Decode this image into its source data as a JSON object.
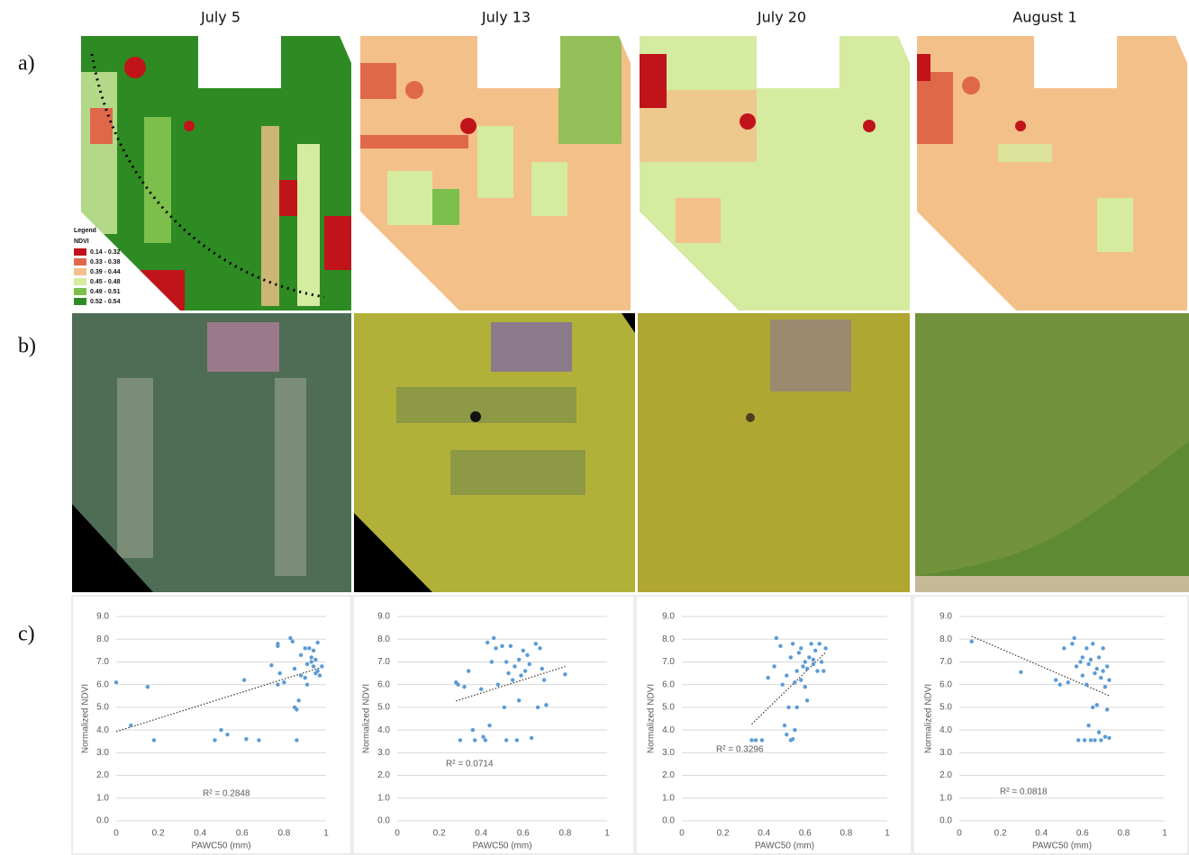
{
  "columns": [
    "July 5",
    "July 13",
    "July 20",
    "August 1"
  ],
  "rows": [
    "a)",
    "b)",
    "c)"
  ],
  "map_legend": {
    "title": "Legend",
    "field": "NDVI",
    "classes": [
      {
        "label": "0.14 - 0.32",
        "color": "#c0141a"
      },
      {
        "label": "0.33 - 0.38",
        "color": "#e0684a"
      },
      {
        "label": "0.39 - 0.44",
        "color": "#f4c08a"
      },
      {
        "label": "0.45 - 0.48",
        "color": "#d4eba0"
      },
      {
        "label": "0.49 - 0.51",
        "color": "#7cbf4c"
      },
      {
        "label": "0.52 - 0.54",
        "color": "#2e8b23"
      }
    ]
  },
  "chart_data": [
    {
      "type": "scatter",
      "xlabel": "PAWC50 (mm)",
      "ylabel": "Normalized NDVI",
      "annotation": "R² = 0.2848",
      "color": "#5b9bd5",
      "trendline": true,
      "grid": true,
      "xlim": [
        0,
        1
      ],
      "ylim": [
        0,
        9
      ],
      "xticks": [
        0,
        0.2,
        0.4,
        0.6,
        0.8,
        1
      ],
      "yticks": [
        {
          "value": 0,
          "label": "0.0"
        },
        {
          "value": 1,
          "label": "1.0"
        },
        {
          "value": 2,
          "label": "2.0"
        },
        {
          "value": 3,
          "label": "3.0"
        },
        {
          "value": 4,
          "label": "4.0"
        },
        {
          "value": 5,
          "label": "5.0"
        },
        {
          "value": 6,
          "label": "6.0"
        },
        {
          "value": 7,
          "label": "7.0"
        },
        {
          "value": 8,
          "label": "8.0"
        },
        {
          "value": 9,
          "label": "9.0"
        }
      ],
      "x": [
        0,
        0.07,
        0.15,
        0.18,
        0.47,
        0.5,
        0.53,
        0.62,
        0.61,
        0.68,
        0.74,
        0.77,
        0.77,
        0.78,
        0.77,
        0.8,
        0.83,
        0.84,
        0.85,
        0.85,
        0.86,
        0.86,
        0.87,
        0.88,
        0.88,
        0.9,
        0.91,
        0.92,
        0.93,
        0.93,
        0.94,
        0.94,
        0.95,
        0.95,
        0.96,
        0.96,
        0.97,
        0.98,
        0.9,
        0.91
      ],
      "y": [
        6.1,
        4.2,
        5.9,
        3.55,
        3.55,
        4.0,
        3.8,
        3.6,
        6.2,
        3.55,
        6.85,
        7.8,
        7.7,
        6.5,
        6.0,
        6.1,
        8.05,
        7.9,
        6.7,
        5.0,
        4.9,
        3.55,
        5.3,
        7.3,
        6.4,
        7.6,
        6.9,
        7.6,
        7.2,
        7.0,
        7.5,
        6.8,
        6.5,
        7.1,
        7.85,
        6.6,
        6.4,
        6.8,
        6.3,
        6.0
      ]
    },
    {
      "type": "scatter",
      "xlabel": "PAWC50 (mm)",
      "ylabel": "Normalized NDVI",
      "annotation": "R² = 0.0714",
      "color": "#5b9bd5",
      "trendline": true,
      "grid": true,
      "xlim": [
        0,
        1
      ],
      "ylim": [
        0,
        9
      ],
      "xticks": [
        0,
        0.2,
        0.4,
        0.6,
        0.8,
        1
      ],
      "yticks": [
        {
          "value": 0,
          "label": "0.0"
        },
        {
          "value": 1,
          "label": "1.0"
        },
        {
          "value": 2,
          "label": "2.0"
        },
        {
          "value": 3,
          "label": "3.0"
        },
        {
          "value": 4,
          "label": "4.0"
        },
        {
          "value": 5,
          "label": "5.0"
        },
        {
          "value": 6,
          "label": "6.0"
        },
        {
          "value": 7,
          "label": "7.0"
        },
        {
          "value": 8,
          "label": "8.0"
        },
        {
          "value": 9,
          "label": "9.0"
        }
      ],
      "x": [
        0.28,
        0.29,
        0.3,
        0.32,
        0.34,
        0.36,
        0.37,
        0.4,
        0.41,
        0.42,
        0.43,
        0.44,
        0.45,
        0.46,
        0.47,
        0.48,
        0.5,
        0.51,
        0.52,
        0.52,
        0.53,
        0.54,
        0.55,
        0.56,
        0.57,
        0.58,
        0.58,
        0.59,
        0.6,
        0.61,
        0.62,
        0.63,
        0.64,
        0.66,
        0.67,
        0.68,
        0.69,
        0.7,
        0.71,
        0.8
      ],
      "y": [
        6.1,
        6.0,
        3.55,
        5.9,
        6.6,
        4.0,
        3.55,
        5.8,
        3.7,
        3.55,
        7.85,
        4.2,
        7.0,
        8.05,
        7.6,
        6.0,
        7.7,
        5.0,
        7.0,
        3.55,
        6.5,
        7.7,
        6.2,
        6.8,
        3.55,
        5.3,
        7.1,
        6.4,
        7.5,
        6.6,
        7.3,
        6.9,
        3.65,
        7.8,
        5.0,
        7.6,
        6.7,
        6.2,
        5.1,
        6.45
      ]
    },
    {
      "type": "scatter",
      "xlabel": "PAWC50 (mm)",
      "ylabel": "Normalized NDVI",
      "annotation": "R² = 0.3296",
      "color": "#5b9bd5",
      "trendline": true,
      "grid": true,
      "xlim": [
        0,
        1
      ],
      "ylim": [
        0,
        9
      ],
      "xticks": [
        0,
        0.2,
        0.4,
        0.6,
        0.8,
        1
      ],
      "yticks": [
        {
          "value": 0,
          "label": "0.0"
        },
        {
          "value": 1,
          "label": "1.0"
        },
        {
          "value": 2,
          "label": "2.0"
        },
        {
          "value": 3,
          "label": "3.0"
        },
        {
          "value": 4,
          "label": "4.0"
        },
        {
          "value": 5,
          "label": "5.0"
        },
        {
          "value": 6,
          "label": "6.0"
        },
        {
          "value": 7,
          "label": "7.0"
        },
        {
          "value": 8,
          "label": "8.0"
        },
        {
          "value": 9,
          "label": "9.0"
        }
      ],
      "x": [
        0.34,
        0.36,
        0.39,
        0.42,
        0.45,
        0.46,
        0.48,
        0.49,
        0.5,
        0.51,
        0.51,
        0.52,
        0.53,
        0.53,
        0.54,
        0.54,
        0.55,
        0.55,
        0.56,
        0.56,
        0.57,
        0.58,
        0.58,
        0.59,
        0.6,
        0.6,
        0.61,
        0.61,
        0.62,
        0.63,
        0.64,
        0.64,
        0.65,
        0.66,
        0.67,
        0.68,
        0.69,
        0.7
      ],
      "y": [
        3.55,
        3.55,
        3.55,
        6.3,
        6.8,
        8.05,
        7.7,
        6.0,
        4.2,
        6.4,
        3.8,
        5.0,
        7.2,
        3.55,
        3.6,
        7.8,
        6.1,
        4.0,
        5.0,
        6.6,
        7.4,
        6.2,
        7.6,
        6.8,
        5.9,
        7.0,
        5.3,
        6.7,
        7.2,
        7.8,
        6.9,
        7.1,
        7.5,
        6.6,
        7.8,
        7.0,
        6.6,
        7.6
      ]
    },
    {
      "type": "scatter",
      "xlabel": "PAWC50 (mm)",
      "ylabel": "Normalized NDVI",
      "annotation": "R² = 0.0818",
      "color": "#5b9bd5",
      "trendline": true,
      "grid": true,
      "xlim": [
        0,
        1
      ],
      "ylim": [
        0,
        9
      ],
      "xticks": [
        0,
        0.2,
        0.4,
        0.6,
        0.8,
        1
      ],
      "yticks": [
        {
          "value": 0,
          "label": "0.0"
        },
        {
          "value": 1,
          "label": "1.0"
        },
        {
          "value": 2,
          "label": "2.0"
        },
        {
          "value": 3,
          "label": "3.0"
        },
        {
          "value": 4,
          "label": "4.0"
        },
        {
          "value": 5,
          "label": "5.0"
        },
        {
          "value": 6,
          "label": "6.0"
        },
        {
          "value": 7,
          "label": "7.0"
        },
        {
          "value": 8,
          "label": "8.0"
        },
        {
          "value": 9,
          "label": "9.0"
        }
      ],
      "x": [
        0.06,
        0.3,
        0.47,
        0.49,
        0.51,
        0.53,
        0.55,
        0.56,
        0.57,
        0.58,
        0.59,
        0.6,
        0.6,
        0.61,
        0.62,
        0.62,
        0.63,
        0.63,
        0.64,
        0.64,
        0.65,
        0.65,
        0.66,
        0.66,
        0.67,
        0.67,
        0.68,
        0.68,
        0.69,
        0.69,
        0.7,
        0.7,
        0.71,
        0.71,
        0.72,
        0.72,
        0.73,
        0.73
      ],
      "y": [
        7.9,
        6.55,
        6.2,
        6.0,
        7.6,
        6.1,
        7.8,
        8.05,
        6.8,
        3.55,
        7.0,
        6.4,
        7.2,
        3.55,
        6.0,
        7.6,
        4.2,
        6.9,
        3.55,
        7.1,
        5.0,
        7.8,
        3.55,
        6.5,
        5.1,
        6.7,
        3.9,
        7.2,
        6.3,
        3.55,
        7.6,
        6.6,
        5.9,
        3.7,
        6.8,
        4.9,
        6.2,
        3.65
      ]
    }
  ]
}
